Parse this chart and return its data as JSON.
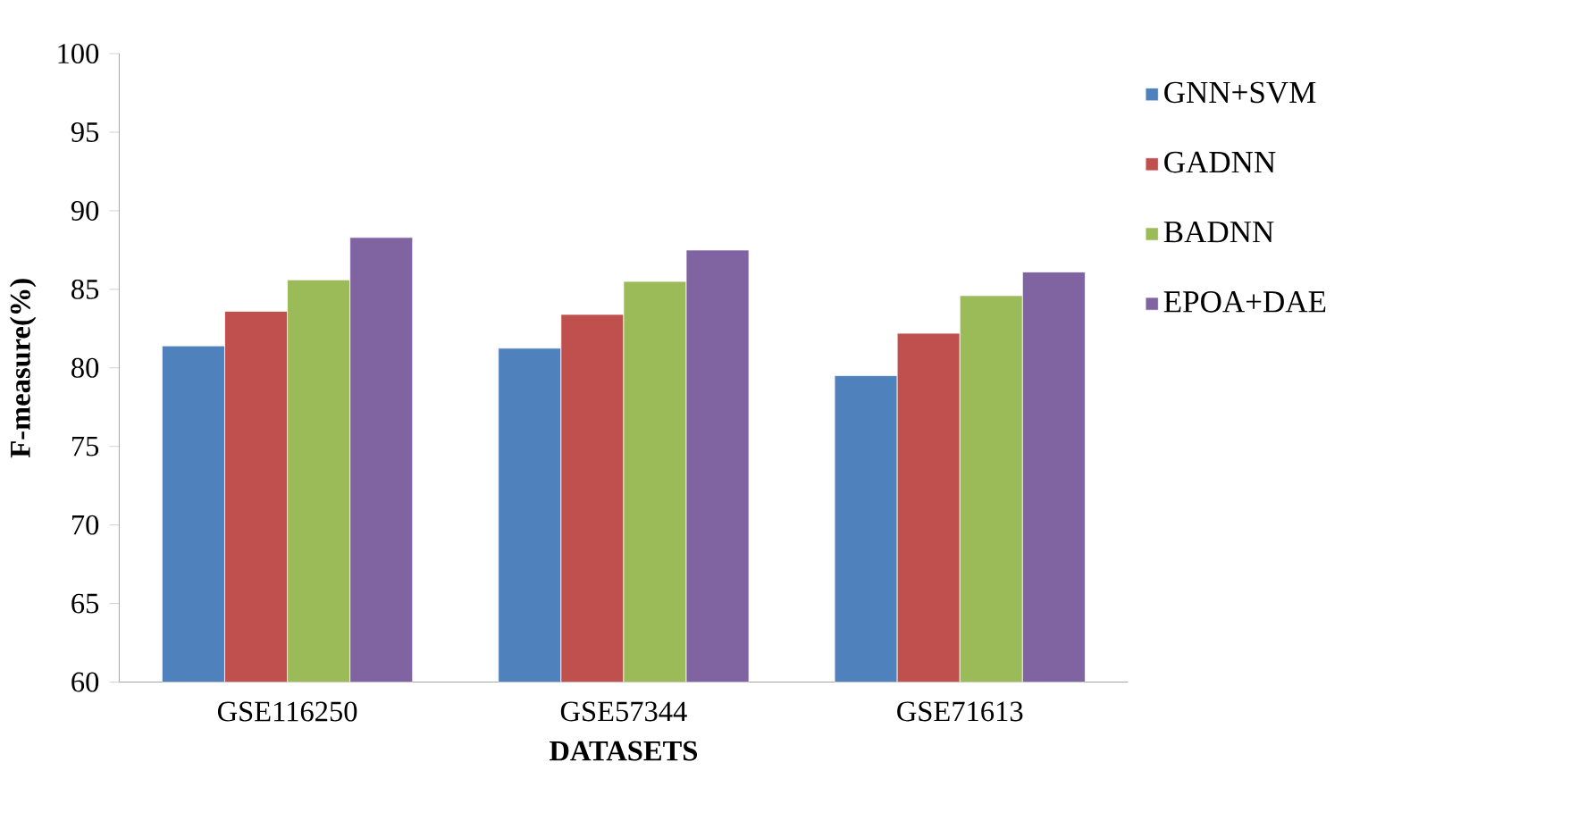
{
  "chart_data": {
    "type": "bar",
    "xlabel": "DATASETS",
    "ylabel": "F-measure(%)",
    "categories": [
      "GSE116250",
      "GSE57344",
      "GSE71613"
    ],
    "series": [
      {
        "name": "GNN+SVM",
        "color": "#4f81bd",
        "values": [
          81.4,
          81.25,
          79.5
        ]
      },
      {
        "name": "GADNN",
        "color": "#c0504d",
        "values": [
          83.6,
          83.4,
          82.2
        ]
      },
      {
        "name": "BADNN",
        "color": "#9bbb59",
        "values": [
          85.6,
          85.5,
          84.6
        ]
      },
      {
        "name": "EPOA+DAE",
        "color": "#8064a2",
        "values": [
          88.3,
          87.5,
          86.1
        ]
      }
    ],
    "ylim": [
      60,
      100
    ],
    "yticks": [
      60,
      65,
      70,
      75,
      80,
      85,
      90,
      95,
      100
    ],
    "grid": false,
    "legend": "right"
  }
}
